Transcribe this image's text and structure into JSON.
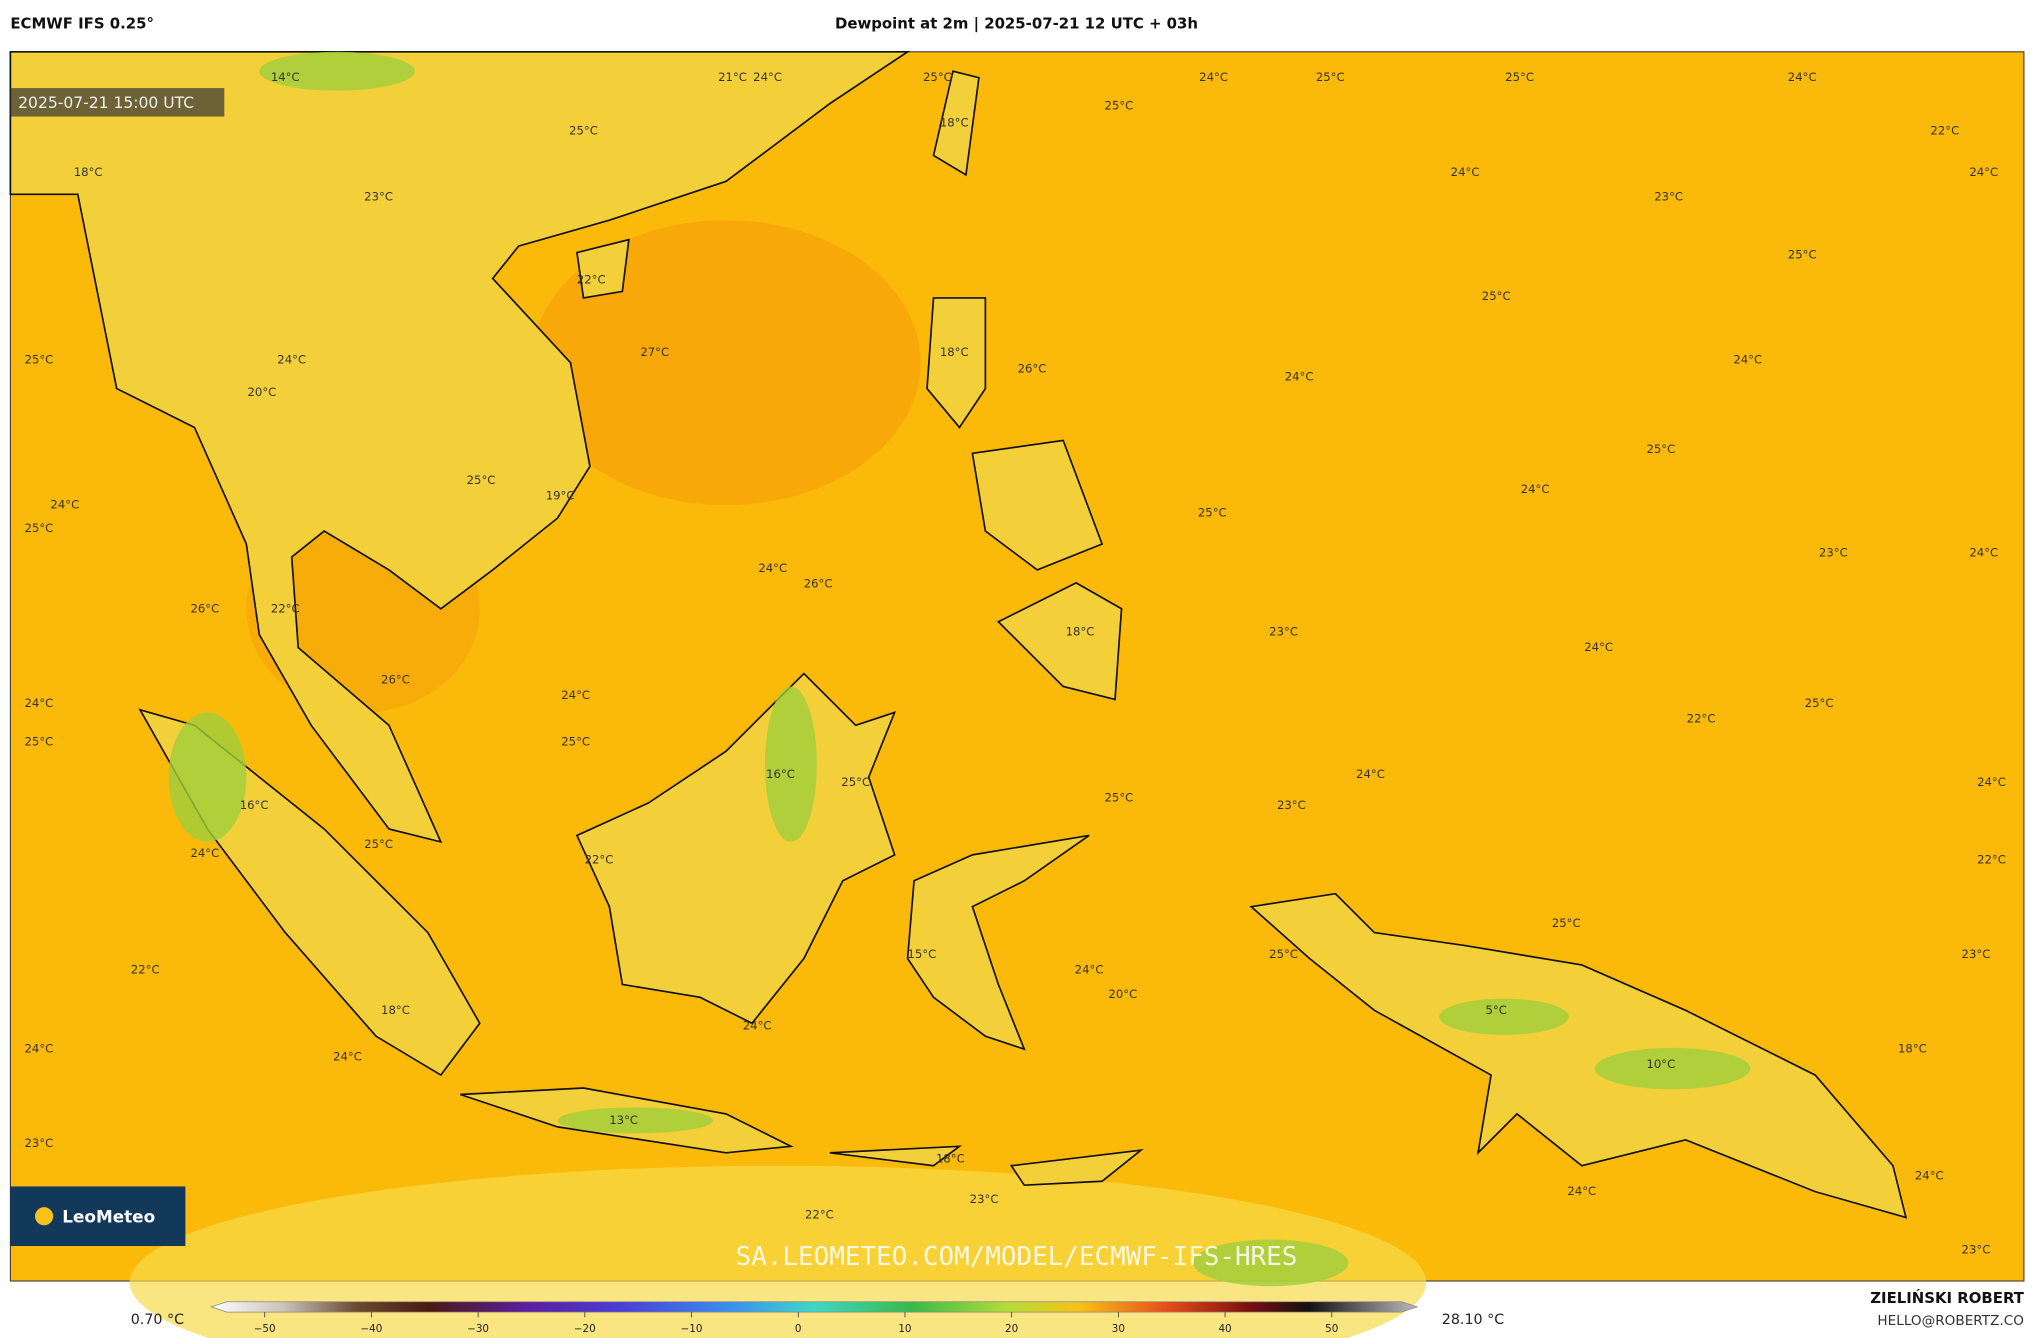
{
  "header": {
    "model": "ECMWF IFS 0.25°",
    "title": "Dewpoint at 2m | 2025-07-21 12 UTC + 03h"
  },
  "map": {
    "valid_time": "2025-07-21 15:00 UTC",
    "watermark": "SA.LEOMETEO.COM/MODEL/ECMWF-IFS-HRES",
    "logo": "LeoMeteo",
    "labels": [
      "14°C",
      "21°C",
      "24°C",
      "25°C",
      "24°C",
      "25°C",
      "25°C",
      "24°C",
      "25°C",
      "25°C",
      "18°C",
      "22°C",
      "18°C",
      "24°C",
      "24°C",
      "23°C",
      "23°C",
      "25°C",
      "22°C",
      "25°C",
      "27°C",
      "18°C",
      "26°C",
      "24°C",
      "24°C",
      "25°C",
      "24°C",
      "20°C",
      "25°C",
      "25°C",
      "19°C",
      "24°C",
      "24°C",
      "25°C",
      "25°C",
      "23°C",
      "24°C",
      "24°C",
      "26°C",
      "26°C",
      "22°C",
      "18°C",
      "23°C",
      "24°C",
      "26°C",
      "24°C",
      "24°C",
      "25°C",
      "22°C",
      "25°C",
      "25°C",
      "16°C",
      "25°C",
      "24°C",
      "24°C",
      "25°C",
      "23°C",
      "16°C",
      "25°C",
      "24°C",
      "22°C",
      "22°C",
      "25°C",
      "15°C",
      "25°C",
      "23°C",
      "22°C",
      "24°C",
      "20°C",
      "5°C",
      "18°C",
      "24°C",
      "24°C",
      "24°C",
      "18°C",
      "10°C",
      "13°C",
      "23°C",
      "18°C",
      "24°C",
      "24°C",
      "23°C",
      "22°C",
      "23°C"
    ]
  },
  "colorbar": {
    "min_label": "0.70 °C",
    "max_label": "28.10 °C",
    "lim": [
      -55,
      58
    ],
    "ticks": [
      {
        "value": -50,
        "label": "−50"
      },
      {
        "value": -40,
        "label": "−40"
      },
      {
        "value": -30,
        "label": "−30"
      },
      {
        "value": -20,
        "label": "−20"
      },
      {
        "value": -10,
        "label": "−10"
      },
      0,
      10,
      20,
      30,
      40,
      50
    ]
  },
  "footer": {
    "author": "ZIELIŃSKI ROBERT",
    "contact": "HELLO@ROBERTZ.CO"
  }
}
